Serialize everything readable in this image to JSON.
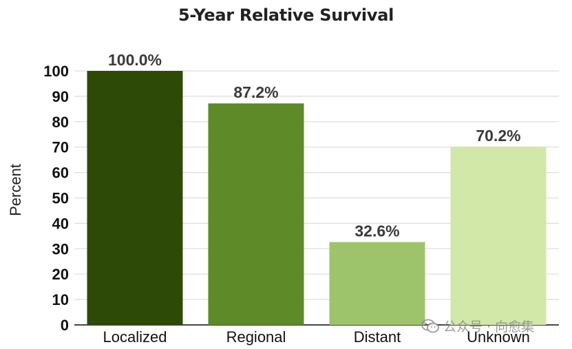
{
  "chart_data": {
    "type": "bar",
    "title": "5-Year Relative Survival",
    "ylabel": "Percent",
    "xlabel": "",
    "categories": [
      "Localized",
      "Regional",
      "Distant",
      "Unknown"
    ],
    "values": [
      100.0,
      87.2,
      32.6,
      70.2
    ],
    "value_labels": [
      "100.0%",
      "87.2%",
      "32.6%",
      "70.2%"
    ],
    "ylim": [
      0,
      100
    ],
    "yticks": [
      0,
      10,
      20,
      30,
      40,
      50,
      60,
      70,
      80,
      90,
      100
    ],
    "grid": true,
    "colors": [
      "#2d4a06",
      "#5e8a28",
      "#9dc46a",
      "#d2e8a8"
    ]
  },
  "watermark": {
    "text": "公众号 · 向愈集",
    "icon": "wechat-icon"
  }
}
